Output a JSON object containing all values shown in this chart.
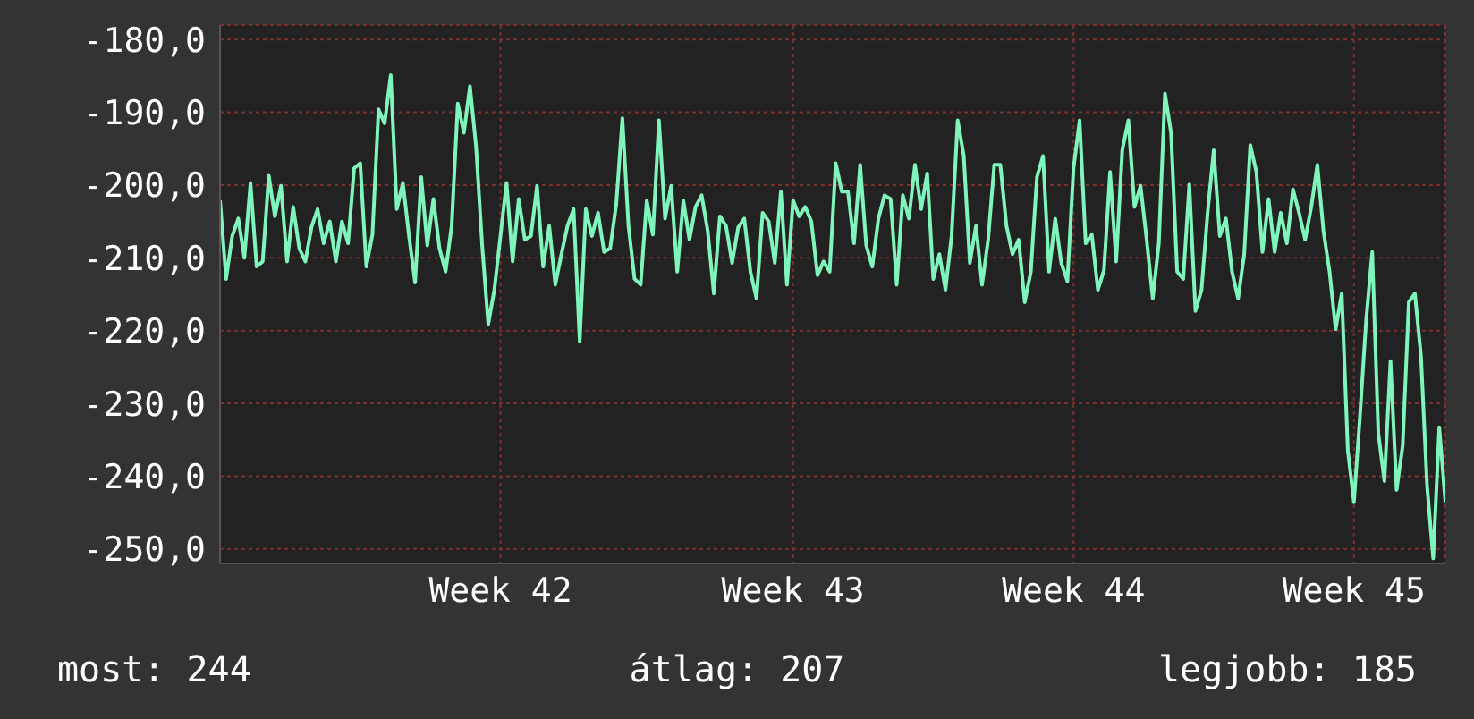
{
  "chart_data": {
    "type": "line",
    "categories": [
      null,
      null,
      null,
      null,
      null,
      null,
      null,
      null,
      null,
      null,
      null,
      null,
      null,
      null,
      null,
      null,
      null,
      null,
      null,
      null,
      null,
      null,
      null,
      null,
      null,
      null,
      null,
      null,
      null,
      null,
      null,
      null,
      null,
      null,
      null,
      null,
      null,
      null,
      null,
      null,
      null,
      null,
      null,
      null,
      null,
      null,
      "Week 42",
      null,
      null,
      null,
      null,
      null,
      null,
      null,
      null,
      null,
      null,
      null,
      null,
      null,
      null,
      null,
      null,
      null,
      null,
      null,
      null,
      null,
      null,
      null,
      null,
      null,
      null,
      null,
      null,
      null,
      null,
      null,
      null,
      null,
      null,
      null,
      null,
      null,
      null,
      null,
      null,
      null,
      null,
      null,
      null,
      null,
      null,
      null,
      "Week 43",
      null,
      null,
      null,
      null,
      null,
      null,
      null,
      null,
      null,
      null,
      null,
      null,
      null,
      null,
      null,
      null,
      null,
      null,
      null,
      null,
      null,
      null,
      null,
      null,
      null,
      null,
      null,
      null,
      null,
      null,
      null,
      null,
      null,
      null,
      null,
      null,
      null,
      null,
      null,
      null,
      null,
      null,
      null,
      null,
      null,
      "Week 44",
      null,
      null,
      null,
      null,
      null,
      null,
      null,
      null,
      null,
      null,
      null,
      null,
      null,
      null,
      null,
      null,
      null,
      null,
      null,
      null,
      null,
      null,
      null,
      null,
      null,
      null,
      null,
      null,
      null,
      null,
      null,
      null,
      null,
      null,
      null,
      null,
      null,
      null,
      null,
      null,
      null,
      null,
      null,
      null,
      null,
      "Week 45",
      null,
      null,
      null,
      null,
      null,
      null,
      null,
      null,
      null,
      null,
      null,
      null,
      null,
      null,
      null
    ],
    "series": [
      {
        "color": "#7ff5bd",
        "values": [
          -202.1,
          -212.9,
          -207,
          -204.6,
          -210,
          -199.7,
          -211.2,
          -210.5,
          -198.7,
          -204.3,
          -200.1,
          -210.5,
          -203,
          -208.7,
          -210.5,
          -205.8,
          -203.3,
          -208,
          -205,
          -210.5,
          -205,
          -208,
          -197.7,
          -197,
          -211.2,
          -206.8,
          -189.6,
          -191.5,
          -184.9,
          -203.3,
          -199.7,
          -207,
          -213.4,
          -198.9,
          -208.3,
          -201.9,
          -208.7,
          -211.9,
          -205.6,
          -188.8,
          -192.8,
          -186.4,
          -194.7,
          -208.3,
          -219.1,
          -214.4,
          -207,
          -199.7,
          -210.5,
          -201.9,
          -207.5,
          -207,
          -200.1,
          -211.2,
          -205.6,
          -213.7,
          -209.5,
          -205.6,
          -203.3,
          -221.5,
          -203.3,
          -207,
          -203.8,
          -209.2,
          -208.7,
          -202.6,
          -190.8,
          -205.6,
          -212.9,
          -213.7,
          -202.1,
          -206.8,
          -191.1,
          -204.6,
          -200.1,
          -211.9,
          -202.1,
          -207.5,
          -203,
          -201.4,
          -206.3,
          -214.9,
          -204.3,
          -205.6,
          -210.7,
          -205.8,
          -204.6,
          -211.9,
          -215.6,
          -203.8,
          -205,
          -210.7,
          -200.9,
          -213.7,
          -202.1,
          -204.3,
          -203,
          -205,
          -212.4,
          -210.5,
          -211.9,
          -197,
          -200.9,
          -200.9,
          -208,
          -197.2,
          -208.3,
          -211.2,
          -204.6,
          -201.4,
          -201.9,
          -213.7,
          -201.4,
          -204.6,
          -197.2,
          -203.3,
          -198.4,
          -212.9,
          -209.5,
          -214.4,
          -207,
          -191.1,
          -196,
          -210.7,
          -205.6,
          -213.7,
          -207.5,
          -197.2,
          -197.2,
          -205.6,
          -209.5,
          -207.5,
          -216.1,
          -211.9,
          -198.9,
          -196,
          -211.9,
          -204.6,
          -210.7,
          -213.2,
          -197.7,
          -191.1,
          -208,
          -206.8,
          -214.4,
          -211.7,
          -198.2,
          -210.5,
          -195.2,
          -191.1,
          -203,
          -200.1,
          -207.5,
          -215.6,
          -208,
          -187.4,
          -192.8,
          -211.9,
          -212.9,
          -199.9,
          -217.3,
          -214.4,
          -203.8,
          -195.2,
          -207,
          -204.6,
          -211.9,
          -215.6,
          -209.5,
          -194.5,
          -198.2,
          -209.2,
          -201.9,
          -209.2,
          -203.8,
          -208,
          -200.6,
          -203.8,
          -207.5,
          -203,
          -197.2,
          -206.3,
          -211.9,
          -219.8,
          -214.9,
          -236.5,
          -243.6,
          -231.6,
          -218.6,
          -209.2,
          -234.1,
          -240.7,
          -224.2,
          -241.9,
          -235.8,
          -216.1,
          -214.9,
          -223.5,
          -241.4,
          -251.3,
          -233.3,
          -243.6
        ]
      }
    ],
    "ylim": [
      -252,
      -178
    ],
    "yticks": [
      {
        "value": -250,
        "label": "-250,0"
      },
      {
        "value": -240,
        "label": "-240,0"
      },
      {
        "value": -230,
        "label": "-230,0"
      },
      {
        "value": -220,
        "label": "-220,0"
      },
      {
        "value": -210,
        "label": "-210,0"
      },
      {
        "value": -200,
        "label": "-200,0"
      },
      {
        "value": -190,
        "label": "-190,0"
      },
      {
        "value": -180,
        "label": "-180,0"
      }
    ],
    "grid": true,
    "marker": "none",
    "line_style": "solid",
    "annotations": [
      "most: 244",
      "átlag: 207",
      "legjobb: 185"
    ]
  }
}
